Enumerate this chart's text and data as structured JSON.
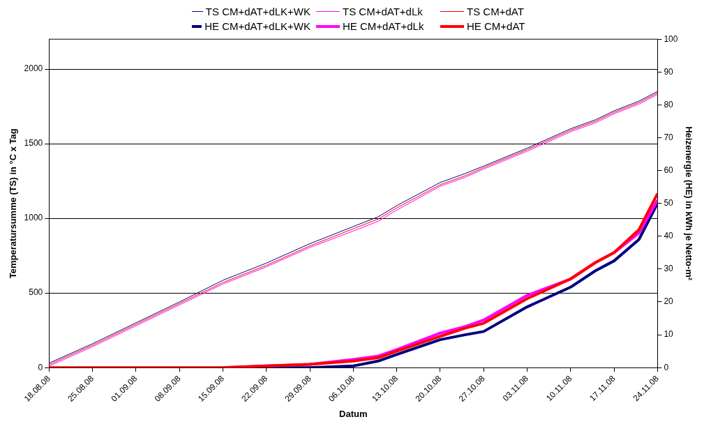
{
  "chart_data": {
    "type": "line",
    "xlabel": "Datum",
    "ylabel": "Temperatursumme (TS) in °C x Tag",
    "y2label": "Heizenergie (HE) in kWh je Netto-m²",
    "legend": "top",
    "grid": "y",
    "marker": "none",
    "line_style": "solid",
    "xlim": [
      "--08-18",
      "--11-24"
    ],
    "xticks": [
      {
        "value": "--08-18",
        "label": "18.08.08"
      },
      {
        "value": "--08-25",
        "label": "25.08.08"
      },
      {
        "value": "--09-01",
        "label": "01.09.08"
      },
      {
        "value": "--09-08",
        "label": "08.09.08"
      },
      {
        "value": "--09-15",
        "label": "15.09.08"
      },
      {
        "value": "--09-22",
        "label": "22.09.08"
      },
      {
        "value": "--09-29",
        "label": "29.09.08"
      },
      {
        "value": "--10-06",
        "label": "06.10.08"
      },
      {
        "value": "--10-13",
        "label": "13.10.08"
      },
      {
        "value": "--10-20",
        "label": "20.10.08"
      },
      {
        "value": "--10-27",
        "label": "27.10.08"
      },
      {
        "value": "--11-03",
        "label": "03.11.08"
      },
      {
        "value": "--11-10",
        "label": "10.11.08"
      },
      {
        "value": "--11-17",
        "label": "17.11.08"
      },
      {
        "value": "--11-24",
        "label": "24.11.08"
      }
    ],
    "ylim": [
      0,
      2200
    ],
    "yticks": [
      0,
      500,
      1000,
      1500,
      2000
    ],
    "y2lim": [
      0,
      100
    ],
    "y2ticks": [
      0,
      10,
      20,
      30,
      40,
      50,
      60,
      70,
      80,
      90,
      100
    ],
    "x": [
      "--08-18",
      "--08-25",
      "--09-01",
      "--09-08",
      "--09-15",
      "--09-22",
      "--09-29",
      "--10-06",
      "--10-10",
      "--10-13",
      "--10-20",
      "--10-24",
      "--10-27",
      "--11-03",
      "--11-10",
      "--11-14",
      "--11-17",
      "--11-21",
      "--11-24"
    ],
    "series": [
      {
        "name": "TS CM+dAT+dLK+WK",
        "color": "#000080",
        "values": [
          30,
          160,
          300,
          440,
          585,
          700,
          830,
          945,
          1010,
          1085,
          1240,
          1300,
          1350,
          1470,
          1600,
          1660,
          1720,
          1785,
          1850
        ]
      },
      {
        "name": "TS CM+dAT+dLk",
        "color": "#ff00ff",
        "values": [
          10,
          140,
          280,
          420,
          560,
          675,
          805,
          915,
          980,
          1055,
          1215,
          1275,
          1330,
          1450,
          1580,
          1640,
          1700,
          1765,
          1830
        ]
      },
      {
        "name": "TS CM+dAT",
        "color": "#ff0000",
        "values": [
          20,
          150,
          290,
          430,
          570,
          685,
          815,
          930,
          995,
          1070,
          1225,
          1285,
          1340,
          1460,
          1590,
          1650,
          1710,
          1775,
          1840
        ]
      },
      {
        "name": "HE CM+dAT+dLK+WK",
        "color": "#000080",
        "axis": "y2",
        "values": [
          null,
          null,
          null,
          null,
          null,
          0,
          0,
          0.5,
          2,
          4,
          8.5,
          10,
          11,
          18.5,
          24.5,
          29.5,
          32.5,
          39,
          50
        ]
      },
      {
        "name": "HE CM+dAT+dLk",
        "color": "#ff00ff",
        "axis": "y2",
        "values": [
          null,
          null,
          null,
          null,
          0,
          0.5,
          1,
          2.5,
          3.5,
          5.5,
          10.5,
          12.5,
          14.5,
          22,
          27,
          32,
          35,
          41,
          51
        ]
      },
      {
        "name": "HE CM+dAT",
        "color": "#ff0000",
        "axis": "y2",
        "values": [
          0,
          0,
          0,
          0,
          0,
          0.5,
          1,
          2,
          3,
          5,
          9.5,
          12,
          13.5,
          21,
          27,
          32,
          35,
          42,
          53
        ]
      }
    ]
  }
}
